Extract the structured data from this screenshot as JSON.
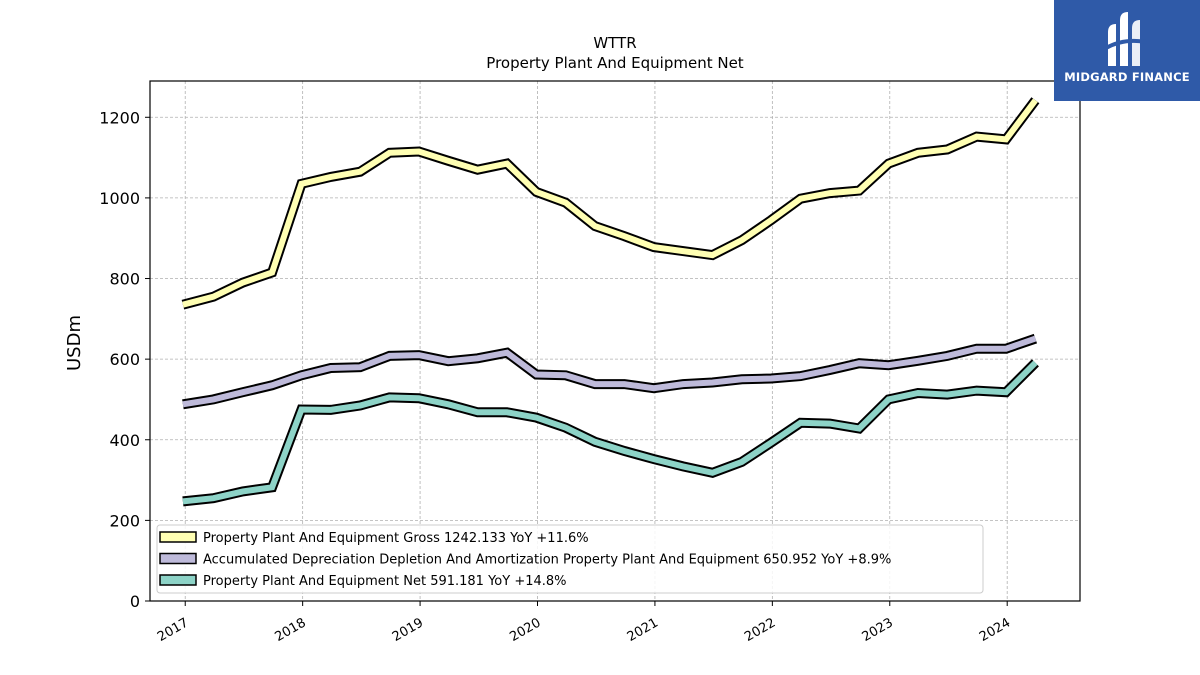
{
  "brand": {
    "name": "MIDGARD FINANCE",
    "bg_color": "#2f5aa8"
  },
  "chart_data": {
    "type": "line",
    "title": "WTTR",
    "subtitle": "Property Plant And Equipment Net",
    "xlabel": "",
    "ylabel": "USDm",
    "ylim": [
      0,
      1290
    ],
    "xlim": [
      2016.7,
      2024.62
    ],
    "yticks": [
      0,
      200,
      400,
      600,
      800,
      1000,
      1200
    ],
    "xticks": [
      2017,
      2018,
      2019,
      2020,
      2021,
      2022,
      2023,
      2024
    ],
    "grid": true,
    "legend_position": "lower-left",
    "series": [
      {
        "name": "Property Plant And Equipment Gross",
        "legend_label": "Property Plant And Equipment Gross  1242.133 YoY +11.6%",
        "color": "#ffffb3",
        "x": [
          2016.98,
          2017.24,
          2017.49,
          2017.74,
          2017.99,
          2018.24,
          2018.49,
          2018.74,
          2018.99,
          2019.24,
          2019.49,
          2019.74,
          2019.99,
          2020.24,
          2020.49,
          2020.74,
          2020.99,
          2021.24,
          2021.49,
          2021.74,
          2021.99,
          2022.24,
          2022.49,
          2022.74,
          2022.99,
          2023.24,
          2023.49,
          2023.74,
          2023.99,
          2024.24
        ],
        "y": [
          735,
          755,
          790,
          815,
          1035,
          1052,
          1065,
          1112,
          1115,
          1092,
          1070,
          1085,
          1015,
          988,
          930,
          905,
          878,
          868,
          858,
          895,
          945,
          998,
          1012,
          1018,
          1085,
          1112,
          1120,
          1152,
          1145,
          1242
        ]
      },
      {
        "name": "Accumulated Depreciation Depletion And Amortization Property Plant And Equipment",
        "legend_label": "Accumulated Depreciation Depletion And Amortization Property Plant And Equipment  650.952 YoY +8.9%",
        "color": "#bebada",
        "x": [
          2016.98,
          2017.24,
          2017.49,
          2017.74,
          2017.99,
          2018.24,
          2018.49,
          2018.74,
          2018.99,
          2019.24,
          2019.49,
          2019.74,
          2019.99,
          2020.24,
          2020.49,
          2020.74,
          2020.99,
          2021.24,
          2021.49,
          2021.74,
          2021.99,
          2022.24,
          2022.49,
          2022.74,
          2022.99,
          2023.24,
          2023.49,
          2023.74,
          2023.99,
          2024.24
        ],
        "y": [
          488,
          500,
          518,
          535,
          560,
          578,
          580,
          608,
          610,
          595,
          602,
          616,
          562,
          560,
          538,
          538,
          528,
          538,
          542,
          550,
          552,
          558,
          573,
          590,
          585,
          596,
          608,
          626,
          626,
          651
        ]
      },
      {
        "name": "Property Plant And Equipment Net",
        "legend_label": "Property Plant And Equipment Net  591.181 YoY +14.8%",
        "color": "#8dd3c7",
        "x": [
          2016.98,
          2017.24,
          2017.49,
          2017.74,
          2017.99,
          2018.24,
          2018.49,
          2018.74,
          2018.99,
          2019.24,
          2019.49,
          2019.74,
          2019.99,
          2020.24,
          2020.49,
          2020.74,
          2020.99,
          2021.24,
          2021.49,
          2021.74,
          2021.99,
          2022.24,
          2022.49,
          2022.74,
          2022.99,
          2023.24,
          2023.49,
          2023.74,
          2023.99,
          2024.24
        ],
        "y": [
          247,
          255,
          272,
          282,
          475,
          474,
          485,
          505,
          503,
          488,
          468,
          468,
          455,
          430,
          395,
          372,
          352,
          334,
          318,
          345,
          393,
          442,
          440,
          428,
          500,
          516,
          512,
          522,
          518,
          591
        ]
      }
    ]
  }
}
